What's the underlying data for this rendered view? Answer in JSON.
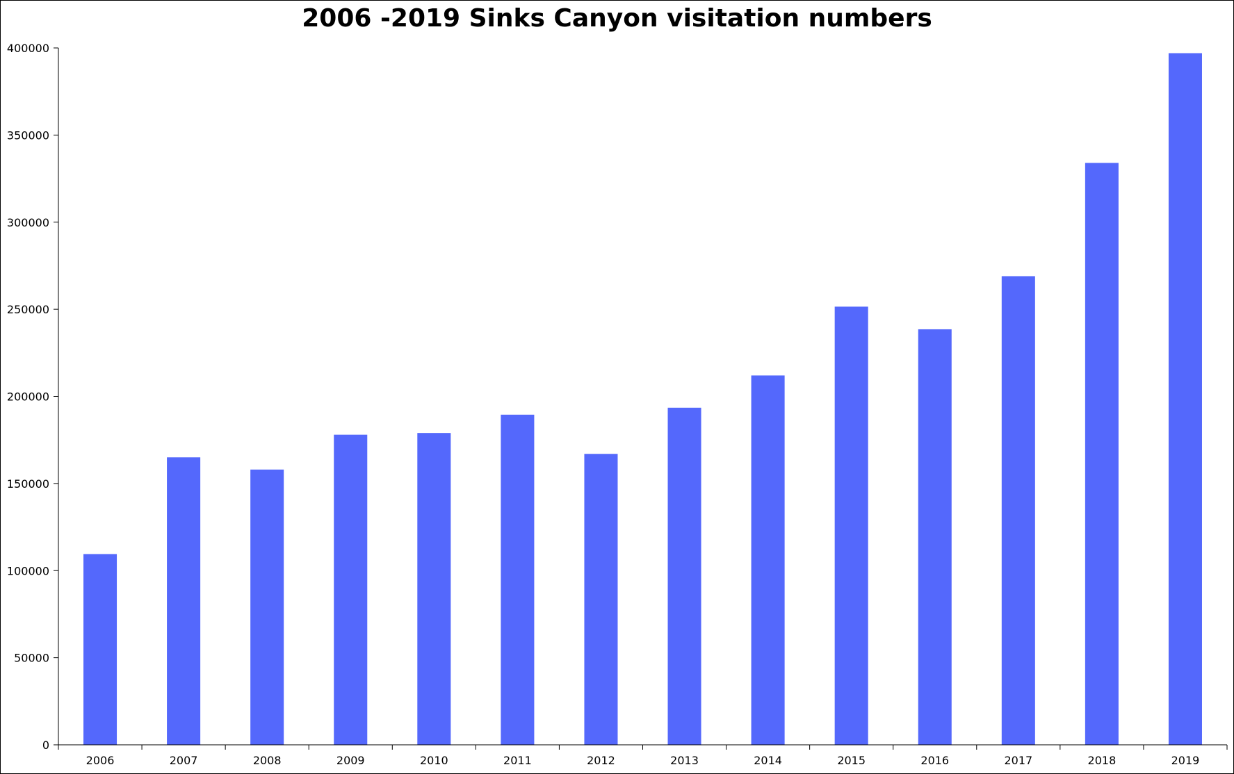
{
  "chart_data": {
    "type": "bar",
    "title": "2006 -2019 Sinks Canyon visitation numbers",
    "xlabel": "",
    "ylabel": "",
    "categories": [
      "2006",
      "2007",
      "2008",
      "2009",
      "2010",
      "2011",
      "2012",
      "2013",
      "2014",
      "2015",
      "2016",
      "2017",
      "2018",
      "2019"
    ],
    "values": [
      109500,
      165000,
      158000,
      178000,
      179000,
      189500,
      167000,
      193500,
      212000,
      251500,
      238500,
      269000,
      334000,
      397000
    ],
    "ylim": [
      0,
      400000
    ],
    "yticks": [
      0,
      50000,
      100000,
      150000,
      200000,
      250000,
      300000,
      350000,
      400000
    ],
    "grid": false,
    "legend": "none",
    "bar_color": "#5468fc"
  }
}
